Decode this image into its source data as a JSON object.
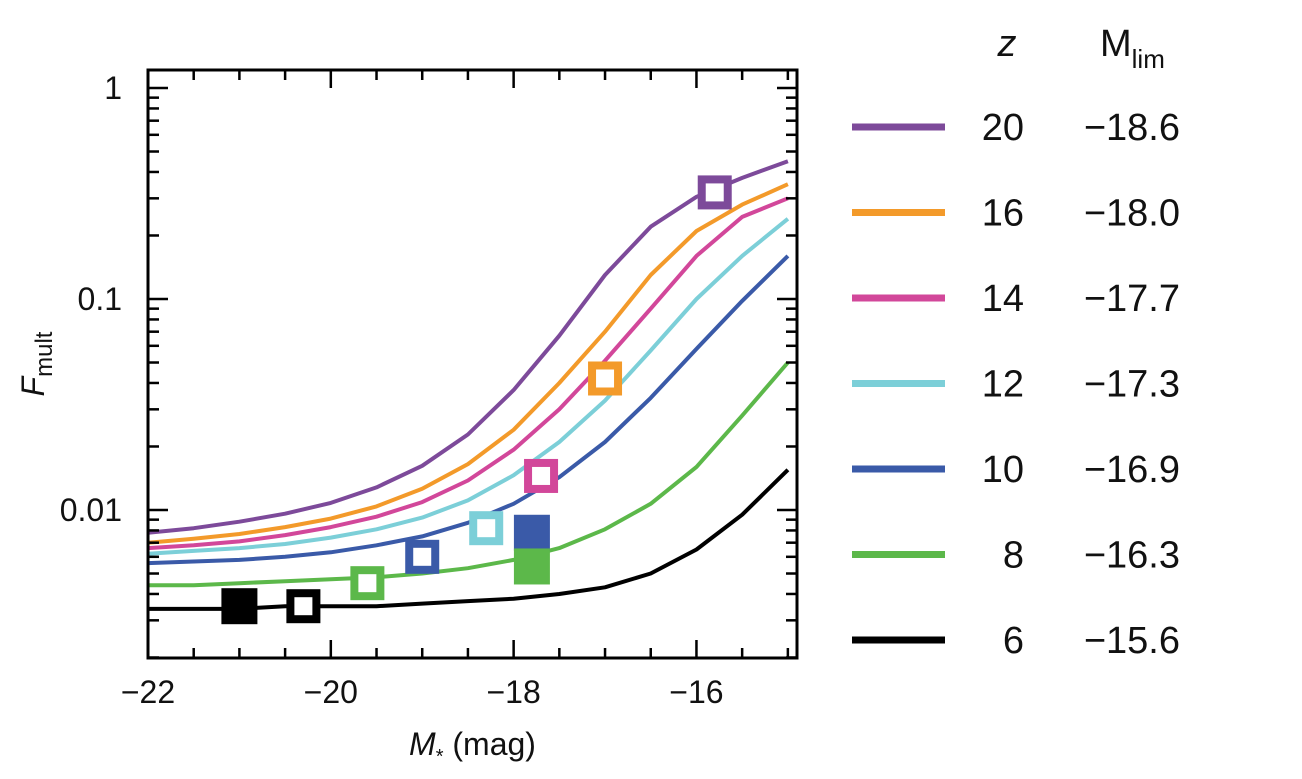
{
  "chart_data": {
    "type": "line",
    "xlabel": "M",
    "xlabel_sub": "*",
    "xlabel_unit": " (mag)",
    "ylabel": "F",
    "ylabel_sub": "mult",
    "xlim": [
      -22,
      -14.9
    ],
    "ylim": [
      0.002,
      1.2
    ],
    "yscale": "log",
    "grid": false,
    "x_ticks": [
      -22,
      -20,
      -18,
      -16
    ],
    "x_tick_labels": [
      "−22",
      "−20",
      "−18",
      "−16"
    ],
    "y_ticks": [
      1,
      0.1,
      0.01
    ],
    "y_tick_labels": [
      "1",
      "0.1",
      "0.01"
    ],
    "legend": {
      "placement": "right",
      "header_z": "z",
      "header_mlim": "M",
      "header_mlim_sub": "lim"
    },
    "x": [
      -22,
      -21.5,
      -21,
      -20.5,
      -20,
      -19.5,
      -19,
      -18.5,
      -18,
      -17.5,
      -17,
      -16.5,
      -16,
      -15.5,
      -15
    ],
    "series": [
      {
        "z": "20",
        "mlim": "−18.6",
        "color": "#7d4a9a",
        "values": [
          0.0078,
          0.0082,
          0.0088,
          0.0096,
          0.0108,
          0.0128,
          0.0162,
          0.0228,
          0.037,
          0.067,
          0.13,
          0.22,
          0.305,
          0.375,
          0.45
        ],
        "marker": {
          "x": -15.8,
          "y": 0.32,
          "filled": false
        }
      },
      {
        "z": "16",
        "mlim": "−18.0",
        "color": "#f39a2a",
        "values": [
          0.007,
          0.0073,
          0.0077,
          0.0083,
          0.0091,
          0.0104,
          0.0126,
          0.0165,
          0.024,
          0.04,
          0.07,
          0.13,
          0.21,
          0.28,
          0.35
        ],
        "marker": {
          "x": -17.0,
          "y": 0.042,
          "filled": false
        }
      },
      {
        "z": "14",
        "mlim": "−17.7",
        "color": "#d2479a",
        "values": [
          0.0066,
          0.0068,
          0.0071,
          0.0076,
          0.0083,
          0.0093,
          0.0109,
          0.0138,
          0.0193,
          0.03,
          0.051,
          0.09,
          0.16,
          0.245,
          0.3
        ],
        "marker": {
          "x": -17.7,
          "y": 0.0145,
          "filled": false
        }
      },
      {
        "z": "12",
        "mlim": "−17.3",
        "color": "#7ccfd8",
        "values": [
          0.0062,
          0.0064,
          0.0066,
          0.0069,
          0.0074,
          0.0081,
          0.0092,
          0.0111,
          0.0146,
          0.021,
          0.033,
          0.057,
          0.1,
          0.16,
          0.24
        ],
        "marker": {
          "x": -18.3,
          "y": 0.0082,
          "filled": false
        }
      },
      {
        "z": "10",
        "mlim": "−16.9",
        "color": "#3a5aa8",
        "values": [
          0.0056,
          0.0057,
          0.0058,
          0.006,
          0.0063,
          0.0068,
          0.0075,
          0.0087,
          0.0107,
          0.0143,
          0.021,
          0.034,
          0.058,
          0.098,
          0.16
        ],
        "marker": {
          "x": -19.0,
          "y": 0.006,
          "filled": false
        },
        "marker2": {
          "x": -17.8,
          "y": 0.0078,
          "filled": true
        }
      },
      {
        "z": "8",
        "mlim": "−16.3",
        "color": "#5cb84a",
        "values": [
          0.0044,
          0.0044,
          0.0045,
          0.0046,
          0.0047,
          0.0048,
          0.005,
          0.0053,
          0.0058,
          0.0066,
          0.0081,
          0.0107,
          0.016,
          0.028,
          0.05
        ],
        "marker": {
          "x": -19.6,
          "y": 0.0045,
          "filled": false
        },
        "marker2": {
          "x": -17.8,
          "y": 0.0054,
          "filled": true
        }
      },
      {
        "z": "6",
        "mlim": "−15.6",
        "color": "#000000",
        "values": [
          0.0034,
          0.0034,
          0.0034,
          0.0035,
          0.0035,
          0.0035,
          0.0036,
          0.0037,
          0.0038,
          0.004,
          0.0043,
          0.005,
          0.0065,
          0.0095,
          0.0155
        ],
        "marker": {
          "x": -20.3,
          "y": 0.0035,
          "filled": false
        },
        "marker2": {
          "x": -21.0,
          "y": 0.0035,
          "filled": true
        }
      }
    ]
  }
}
